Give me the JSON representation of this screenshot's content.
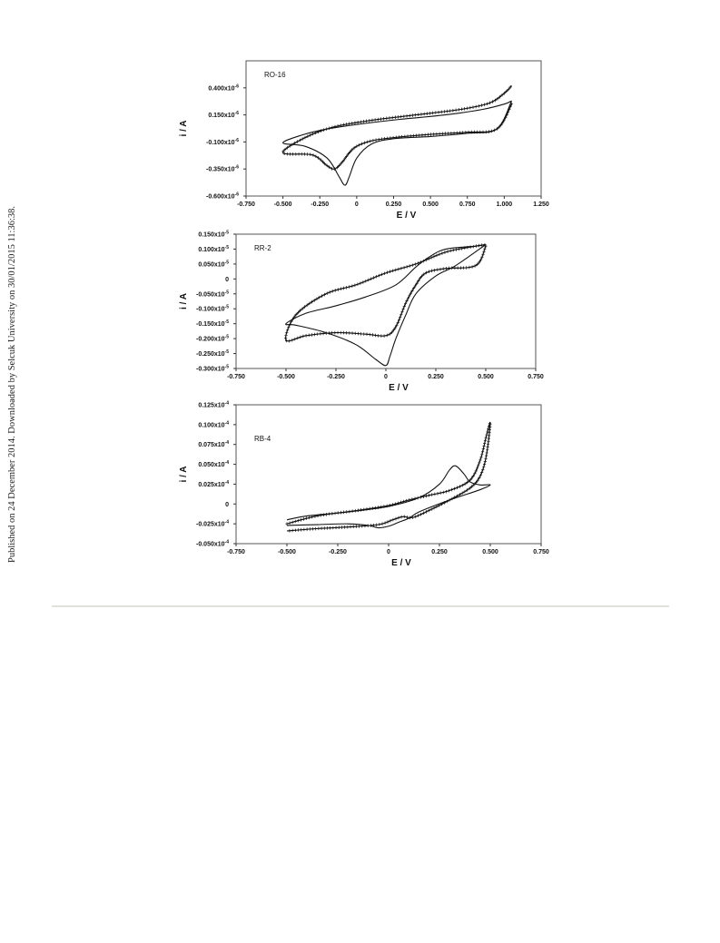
{
  "side_note": "Published on 24 December 2014. Downloaded by Selcuk University on 30/01/2015 11:36:38.",
  "chart_data": [
    {
      "type": "line",
      "label": "RO-16",
      "xlabel": "E / V",
      "ylabel": "i / A",
      "xlim": [
        -0.75,
        1.25
      ],
      "ylim": [
        -0.6,
        0.65
      ],
      "x_ticks": [
        "-0.750",
        "-0.500",
        "-0.250",
        "0",
        "0.250",
        "0.500",
        "0.750",
        "1.000",
        "1.250"
      ],
      "y_ticks": [
        {
          "v": 0.4,
          "base": "0.400x10",
          "exp": "-6"
        },
        {
          "v": 0.15,
          "base": "0.150x10",
          "exp": "-6"
        },
        {
          "v": -0.1,
          "base": "-0.100x10",
          "exp": "-6"
        },
        {
          "v": -0.35,
          "base": "-0.350x10",
          "exp": "-6"
        },
        {
          "v": -0.6,
          "base": "-0.600x10",
          "exp": "-6"
        }
      ],
      "series": [
        {
          "marker": "none",
          "x": [
            1.05,
            0.95,
            0.75,
            0.5,
            0.25,
            0.1,
            0.0,
            -0.05,
            -0.08,
            -0.12,
            -0.2,
            -0.35,
            -0.5,
            -0.38,
            -0.2,
            0.05,
            0.3,
            0.6,
            0.85,
            1.0,
            1.05
          ],
          "y": [
            0.28,
            0.02,
            -0.02,
            -0.05,
            -0.07,
            -0.12,
            -0.25,
            -0.42,
            -0.5,
            -0.42,
            -0.25,
            -0.14,
            -0.11,
            -0.04,
            0.02,
            0.07,
            0.11,
            0.15,
            0.2,
            0.25,
            0.28
          ]
        },
        {
          "marker": "cross",
          "x": [
            1.05,
            0.95,
            0.75,
            0.5,
            0.25,
            0.1,
            0.0,
            -0.05,
            -0.1,
            -0.15,
            -0.2,
            -0.3,
            -0.5,
            -0.35,
            -0.15,
            0.1,
            0.4,
            0.7,
            0.9,
            1.0,
            1.05
          ],
          "y": [
            0.25,
            0.02,
            -0.01,
            -0.03,
            -0.06,
            -0.09,
            -0.14,
            -0.2,
            -0.29,
            -0.35,
            -0.32,
            -0.22,
            -0.2,
            -0.06,
            0.04,
            0.1,
            0.15,
            0.2,
            0.26,
            0.35,
            0.42
          ]
        }
      ]
    },
    {
      "type": "line",
      "label": "RR-2",
      "xlabel": "E / V",
      "ylabel": "i / A",
      "xlim": [
        -0.75,
        0.75
      ],
      "ylim": [
        -0.3,
        0.15
      ],
      "x_ticks": [
        "-0.750",
        "-0.500",
        "-0.250",
        "0",
        "0.250",
        "0.500",
        "0.750"
      ],
      "y_ticks": [
        {
          "v": 0.15,
          "base": "0.150x10",
          "exp": "-5"
        },
        {
          "v": 0.1,
          "base": "0.100x10",
          "exp": "-5"
        },
        {
          "v": 0.05,
          "base": "0.050x10",
          "exp": "-5"
        },
        {
          "v": 0,
          "base": "0",
          "exp": ""
        },
        {
          "v": -0.05,
          "base": "-0.050x10",
          "exp": "-5"
        },
        {
          "v": -0.1,
          "base": "-0.100x10",
          "exp": "-5"
        },
        {
          "v": -0.15,
          "base": "-0.150x10",
          "exp": "-5"
        },
        {
          "v": -0.2,
          "base": "-0.200x10",
          "exp": "-5"
        },
        {
          "v": -0.25,
          "base": "-0.250x10",
          "exp": "-5"
        },
        {
          "v": -0.3,
          "base": "-0.300x10",
          "exp": "-5"
        }
      ],
      "series": [
        {
          "marker": "none",
          "x": [
            0.5,
            0.35,
            0.25,
            0.15,
            0.1,
            0.05,
            0.02,
            0.0,
            -0.05,
            -0.15,
            -0.3,
            -0.45,
            -0.5,
            -0.4,
            -0.25,
            -0.1,
            0.05,
            0.15,
            0.22,
            0.3,
            0.45,
            0.5
          ],
          "y": [
            0.115,
            0.045,
            0.01,
            -0.05,
            -0.12,
            -0.2,
            -0.26,
            -0.29,
            -0.27,
            -0.22,
            -0.18,
            -0.155,
            -0.15,
            -0.115,
            -0.09,
            -0.06,
            -0.02,
            0.04,
            0.075,
            0.1,
            0.11,
            0.115
          ]
        },
        {
          "marker": "cross",
          "x": [
            0.5,
            0.45,
            0.3,
            0.2,
            0.15,
            0.1,
            0.05,
            0.0,
            -0.1,
            -0.25,
            -0.4,
            -0.5,
            -0.45,
            -0.3,
            -0.15,
            0.0,
            0.15,
            0.3,
            0.45,
            0.5
          ],
          "y": [
            0.11,
            0.045,
            0.035,
            0.02,
            -0.02,
            -0.08,
            -0.16,
            -0.19,
            -0.185,
            -0.18,
            -0.19,
            -0.205,
            -0.12,
            -0.05,
            -0.02,
            0.02,
            0.05,
            0.09,
            0.11,
            0.115
          ]
        }
      ]
    },
    {
      "type": "line",
      "label": "RB-4",
      "xlabel": "E / V",
      "ylabel": "i / A",
      "xlim": [
        -0.75,
        0.75
      ],
      "ylim": [
        -0.05,
        0.125
      ],
      "x_ticks": [
        "-0.750",
        "-0.500",
        "-0.250",
        "0",
        "0.250",
        "0.500",
        "0.750"
      ],
      "y_ticks": [
        {
          "v": 0.125,
          "base": "0.125x10",
          "exp": "-4"
        },
        {
          "v": 0.1,
          "base": "0.100x10",
          "exp": "-4"
        },
        {
          "v": 0.075,
          "base": "0.075x10",
          "exp": "-4"
        },
        {
          "v": 0.05,
          "base": "0.050x10",
          "exp": "-4"
        },
        {
          "v": 0.025,
          "base": "0.025x10",
          "exp": "-4"
        },
        {
          "v": 0,
          "base": "0",
          "exp": ""
        },
        {
          "v": -0.025,
          "base": "-0.025x10",
          "exp": "-4"
        },
        {
          "v": -0.05,
          "base": "-0.050x10",
          "exp": "-4"
        }
      ],
      "series": [
        {
          "marker": "none",
          "x": [
            -0.5,
            -0.4,
            -0.2,
            0.0,
            0.15,
            0.25,
            0.3,
            0.33,
            0.37,
            0.4,
            0.45,
            0.5,
            0.45,
            0.3,
            0.15,
            0.1,
            0.05,
            0.0,
            -0.05,
            -0.1,
            -0.2,
            -0.35,
            -0.5
          ],
          "y": [
            -0.02,
            -0.015,
            -0.01,
            -0.003,
            0.008,
            0.025,
            0.043,
            0.048,
            0.038,
            0.028,
            0.024,
            0.024,
            0.018,
            0.005,
            -0.01,
            -0.018,
            -0.023,
            -0.028,
            -0.03,
            -0.027,
            -0.025,
            -0.026,
            -0.027
          ]
        },
        {
          "marker": "cross",
          "x": [
            -0.5,
            -0.35,
            -0.15,
            0.0,
            0.1,
            0.2,
            0.3,
            0.4,
            0.45,
            0.48,
            0.5,
            0.48,
            0.45,
            0.4,
            0.3,
            0.2,
            0.12,
            0.07,
            0.02,
            -0.05,
            -0.2,
            -0.35,
            -0.5
          ],
          "y": [
            -0.025,
            -0.015,
            -0.008,
            -0.002,
            0.005,
            0.011,
            0.017,
            0.03,
            0.055,
            0.085,
            0.102,
            0.06,
            0.035,
            0.02,
            0.005,
            -0.008,
            -0.017,
            -0.016,
            -0.02,
            -0.026,
            -0.029,
            -0.031,
            -0.034
          ]
        }
      ]
    }
  ]
}
